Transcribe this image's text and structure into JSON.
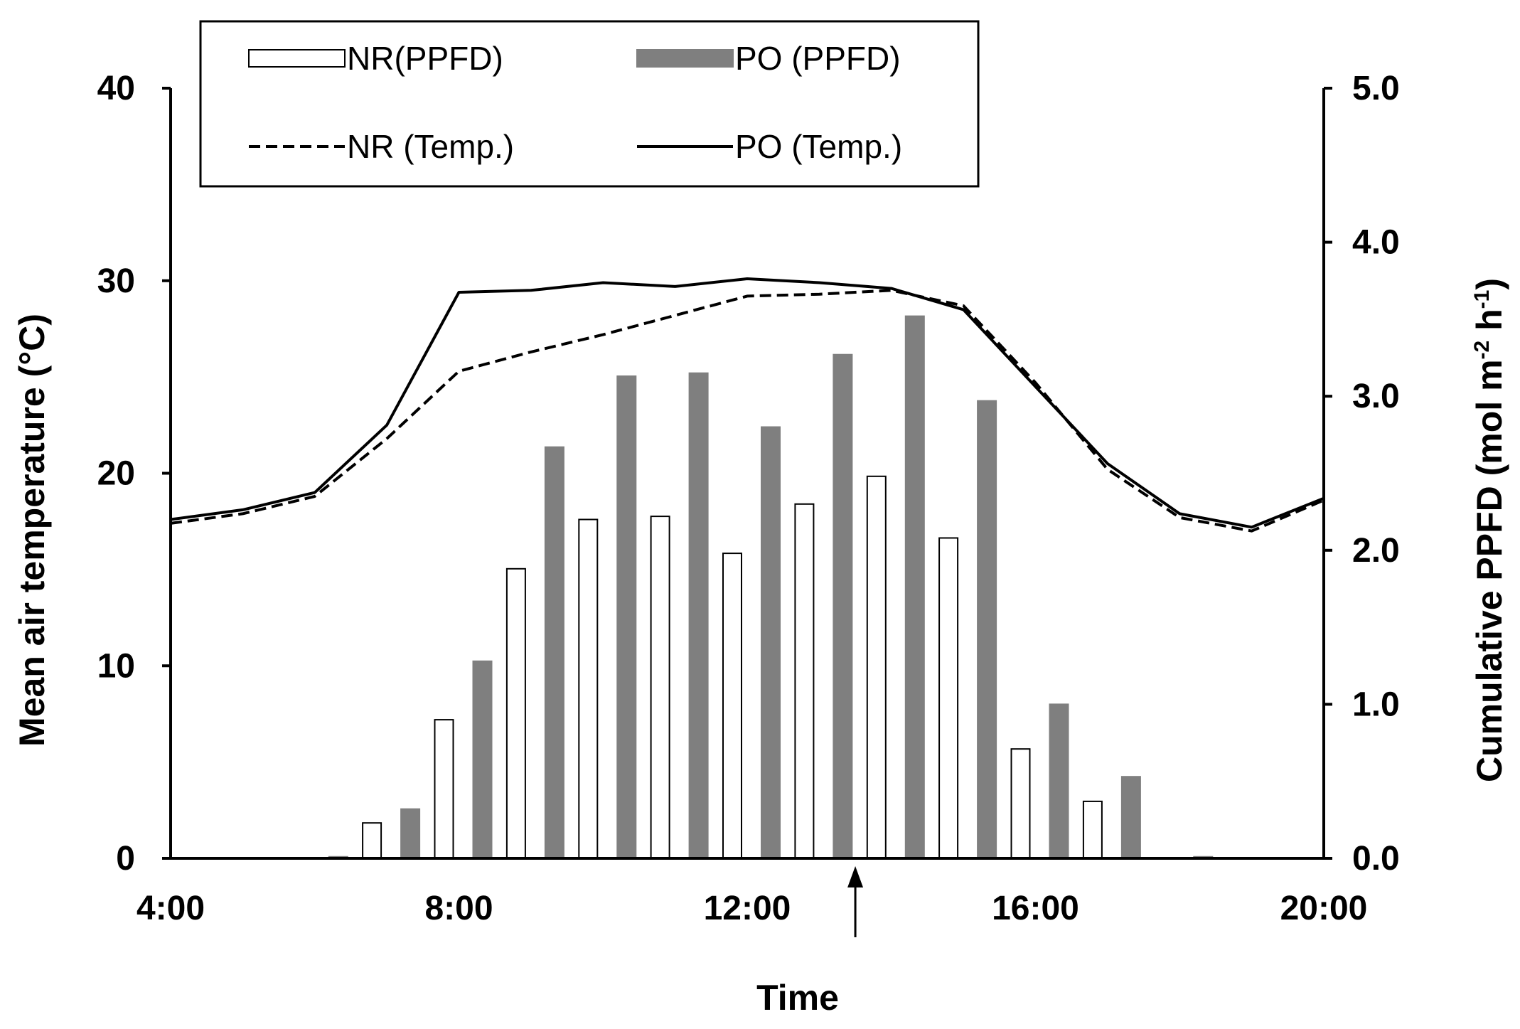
{
  "chart_data": {
    "type": "bar",
    "title": "",
    "xlabel": "Time",
    "ylabel_left": "Mean air temperature (°C)",
    "ylabel_right_parts": [
      "Cumulative PPFD (mol m",
      "-2",
      " h",
      "-1",
      ")"
    ],
    "x_range": [
      4,
      20
    ],
    "x_ticks": [
      4,
      8,
      12,
      16,
      20
    ],
    "x_tick_labels": [
      "4:00",
      "8:00",
      "12:00",
      "16:00",
      "20:00"
    ],
    "ylim_left": [
      0,
      40
    ],
    "left_ticks": [
      0,
      10,
      20,
      30,
      40
    ],
    "left_tick_labels": [
      "0",
      "10",
      "20",
      "30",
      "40"
    ],
    "ylim_right": [
      0,
      5
    ],
    "right_ticks": [
      0,
      1,
      2,
      3,
      4,
      5
    ],
    "right_tick_labels": [
      "0.0",
      "1.0",
      "2.0",
      "3.0",
      "4.0",
      "5.0"
    ],
    "bar_hours": [
      6,
      7,
      8,
      9,
      10,
      11,
      12,
      13,
      14,
      15,
      16,
      17,
      18
    ],
    "series": [
      {
        "name": "NR(PPFD)",
        "kind": "bar",
        "axis": "right",
        "fill": "#ffffff",
        "stroke": "#000000",
        "values": [
          0.0,
          0.23,
          0.9,
          1.88,
          2.2,
          2.22,
          1.98,
          2.3,
          2.48,
          2.08,
          0.71,
          0.37,
          0.0
        ]
      },
      {
        "name": "PO (PPFD)",
        "kind": "bar",
        "axis": "right",
        "fill": "#7f7f7f",
        "stroke": "#7f7f7f",
        "values": [
          0.01,
          0.32,
          1.28,
          2.67,
          3.13,
          3.15,
          2.8,
          3.27,
          3.52,
          2.97,
          1.0,
          0.53,
          0.01
        ]
      },
      {
        "name": "NR (Temp.)",
        "kind": "line",
        "axis": "left",
        "style": "dashed",
        "color": "#000000",
        "x": [
          4,
          5,
          6,
          7,
          8,
          9,
          10,
          11,
          12,
          13,
          14,
          15,
          16,
          17,
          18,
          19,
          20
        ],
        "values": [
          17.4,
          17.9,
          18.8,
          21.8,
          25.3,
          26.3,
          27.2,
          28.2,
          29.2,
          29.3,
          29.5,
          28.7,
          24.7,
          20.2,
          17.7,
          17.0,
          18.6
        ]
      },
      {
        "name": "PO (Temp.)",
        "kind": "line",
        "axis": "left",
        "style": "solid",
        "color": "#000000",
        "x": [
          4,
          5,
          6,
          7,
          8,
          9,
          10,
          11,
          12,
          13,
          14,
          15,
          16,
          17,
          18,
          19,
          20
        ],
        "values": [
          17.6,
          18.1,
          19.0,
          22.5,
          29.4,
          29.5,
          29.9,
          29.7,
          30.1,
          29.9,
          29.6,
          28.5,
          24.5,
          20.5,
          17.9,
          17.2,
          18.7
        ]
      }
    ],
    "legend": {
      "position": "top-left",
      "entries": [
        "NR(PPFD)",
        "PO (PPFD)",
        "NR (Temp.)",
        "PO (Temp.)"
      ]
    },
    "annotations": [
      {
        "type": "arrow-up",
        "x": 13.5,
        "label": ""
      }
    ],
    "grid": false
  }
}
